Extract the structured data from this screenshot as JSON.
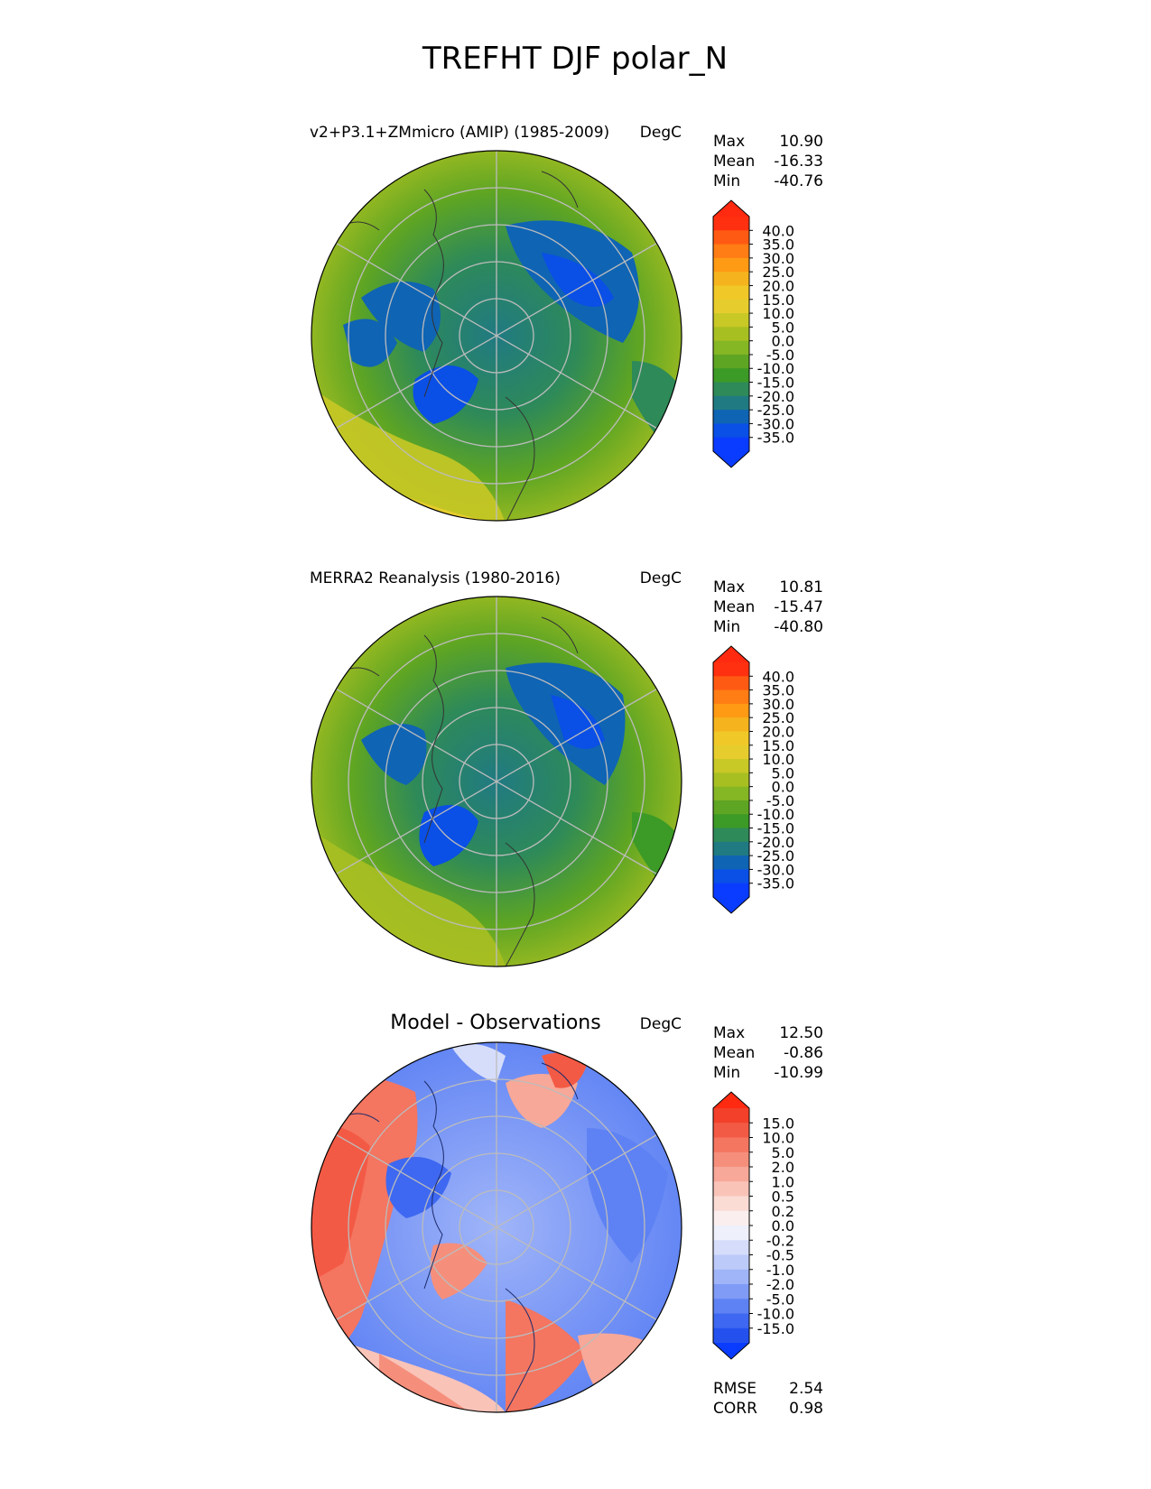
{
  "title": "TREFHT DJF polar_N",
  "panels": [
    {
      "id": "test",
      "name": "v2+P3.1+ZMmicro (AMIP) (1985-2009)",
      "units": "DegC",
      "stats": [
        {
          "label": "Max",
          "value": "10.90"
        },
        {
          "label": "Mean",
          "value": "-16.33"
        },
        {
          "label": "Min",
          "value": "-40.76"
        }
      ],
      "colorbar": {
        "ticks": [
          "40.0",
          "35.0",
          "30.0",
          "25.0",
          "20.0",
          "15.0",
          "10.0",
          "5.0",
          "0.0",
          "-5.0",
          "-10.0",
          "-15.0",
          "-20.0",
          "-25.0",
          "-30.0",
          "-35.0"
        ],
        "colors": [
          "#ff3010",
          "#ff5a14",
          "#ff7d14",
          "#ff9a14",
          "#f5b41e",
          "#f0c828",
          "#e6cd2d",
          "#c8c826",
          "#a8bf22",
          "#85b624",
          "#5ea523",
          "#3c9a26",
          "#2e8a58",
          "#207a82",
          "#0f64b4",
          "#0a4fe6",
          "#0a3cff"
        ],
        "over_color": "#ff2a10",
        "under_color": "#0a3cff"
      }
    },
    {
      "id": "ref",
      "name": "MERRA2 Reanalysis (1980-2016)",
      "units": "DegC",
      "stats": [
        {
          "label": "Max",
          "value": "10.81"
        },
        {
          "label": "Mean",
          "value": "-15.47"
        },
        {
          "label": "Min",
          "value": "-40.80"
        }
      ],
      "colorbar": {
        "ticks": [
          "40.0",
          "35.0",
          "30.0",
          "25.0",
          "20.0",
          "15.0",
          "10.0",
          "5.0",
          "0.0",
          "-5.0",
          "-10.0",
          "-15.0",
          "-20.0",
          "-25.0",
          "-30.0",
          "-35.0"
        ],
        "colors": [
          "#ff3010",
          "#ff5a14",
          "#ff7d14",
          "#ff9a14",
          "#f5b41e",
          "#f0c828",
          "#e6cd2d",
          "#c8c826",
          "#a8bf22",
          "#85b624",
          "#5ea523",
          "#3c9a26",
          "#2e8a58",
          "#207a82",
          "#0f64b4",
          "#0a4fe6",
          "#0a3cff"
        ],
        "over_color": "#ff2a10",
        "under_color": "#0a3cff"
      }
    },
    {
      "id": "diff",
      "name": "Model - Observations",
      "units": "DegC",
      "stats": [
        {
          "label": "Max",
          "value": "12.50"
        },
        {
          "label": "Mean",
          "value": "-0.86"
        },
        {
          "label": "Min",
          "value": "-10.99"
        }
      ],
      "extra_stats": [
        {
          "label": "RMSE",
          "value": "2.54"
        },
        {
          "label": "CORR",
          "value": "0.98"
        }
      ],
      "colorbar": {
        "ticks": [
          "15.0",
          "10.0",
          "5.0",
          "2.0",
          "1.0",
          "0.5",
          "0.2",
          "0.0",
          "-0.2",
          "-0.5",
          "-1.0",
          "-2.0",
          "-5.0",
          "-10.0",
          "-15.0"
        ],
        "colors": [
          "#f2402a",
          "#f35a45",
          "#f47560",
          "#f58f7c",
          "#f7a898",
          "#f9c3b8",
          "#fbdcd5",
          "#fbeeee",
          "#eef0fb",
          "#d6ddfb",
          "#bccafa",
          "#a0b5f8",
          "#7f9bf6",
          "#5e82f4",
          "#3e68f1",
          "#2451ee"
        ],
        "over_color": "#ff2a10",
        "under_color": "#0a3cff"
      }
    }
  ]
}
